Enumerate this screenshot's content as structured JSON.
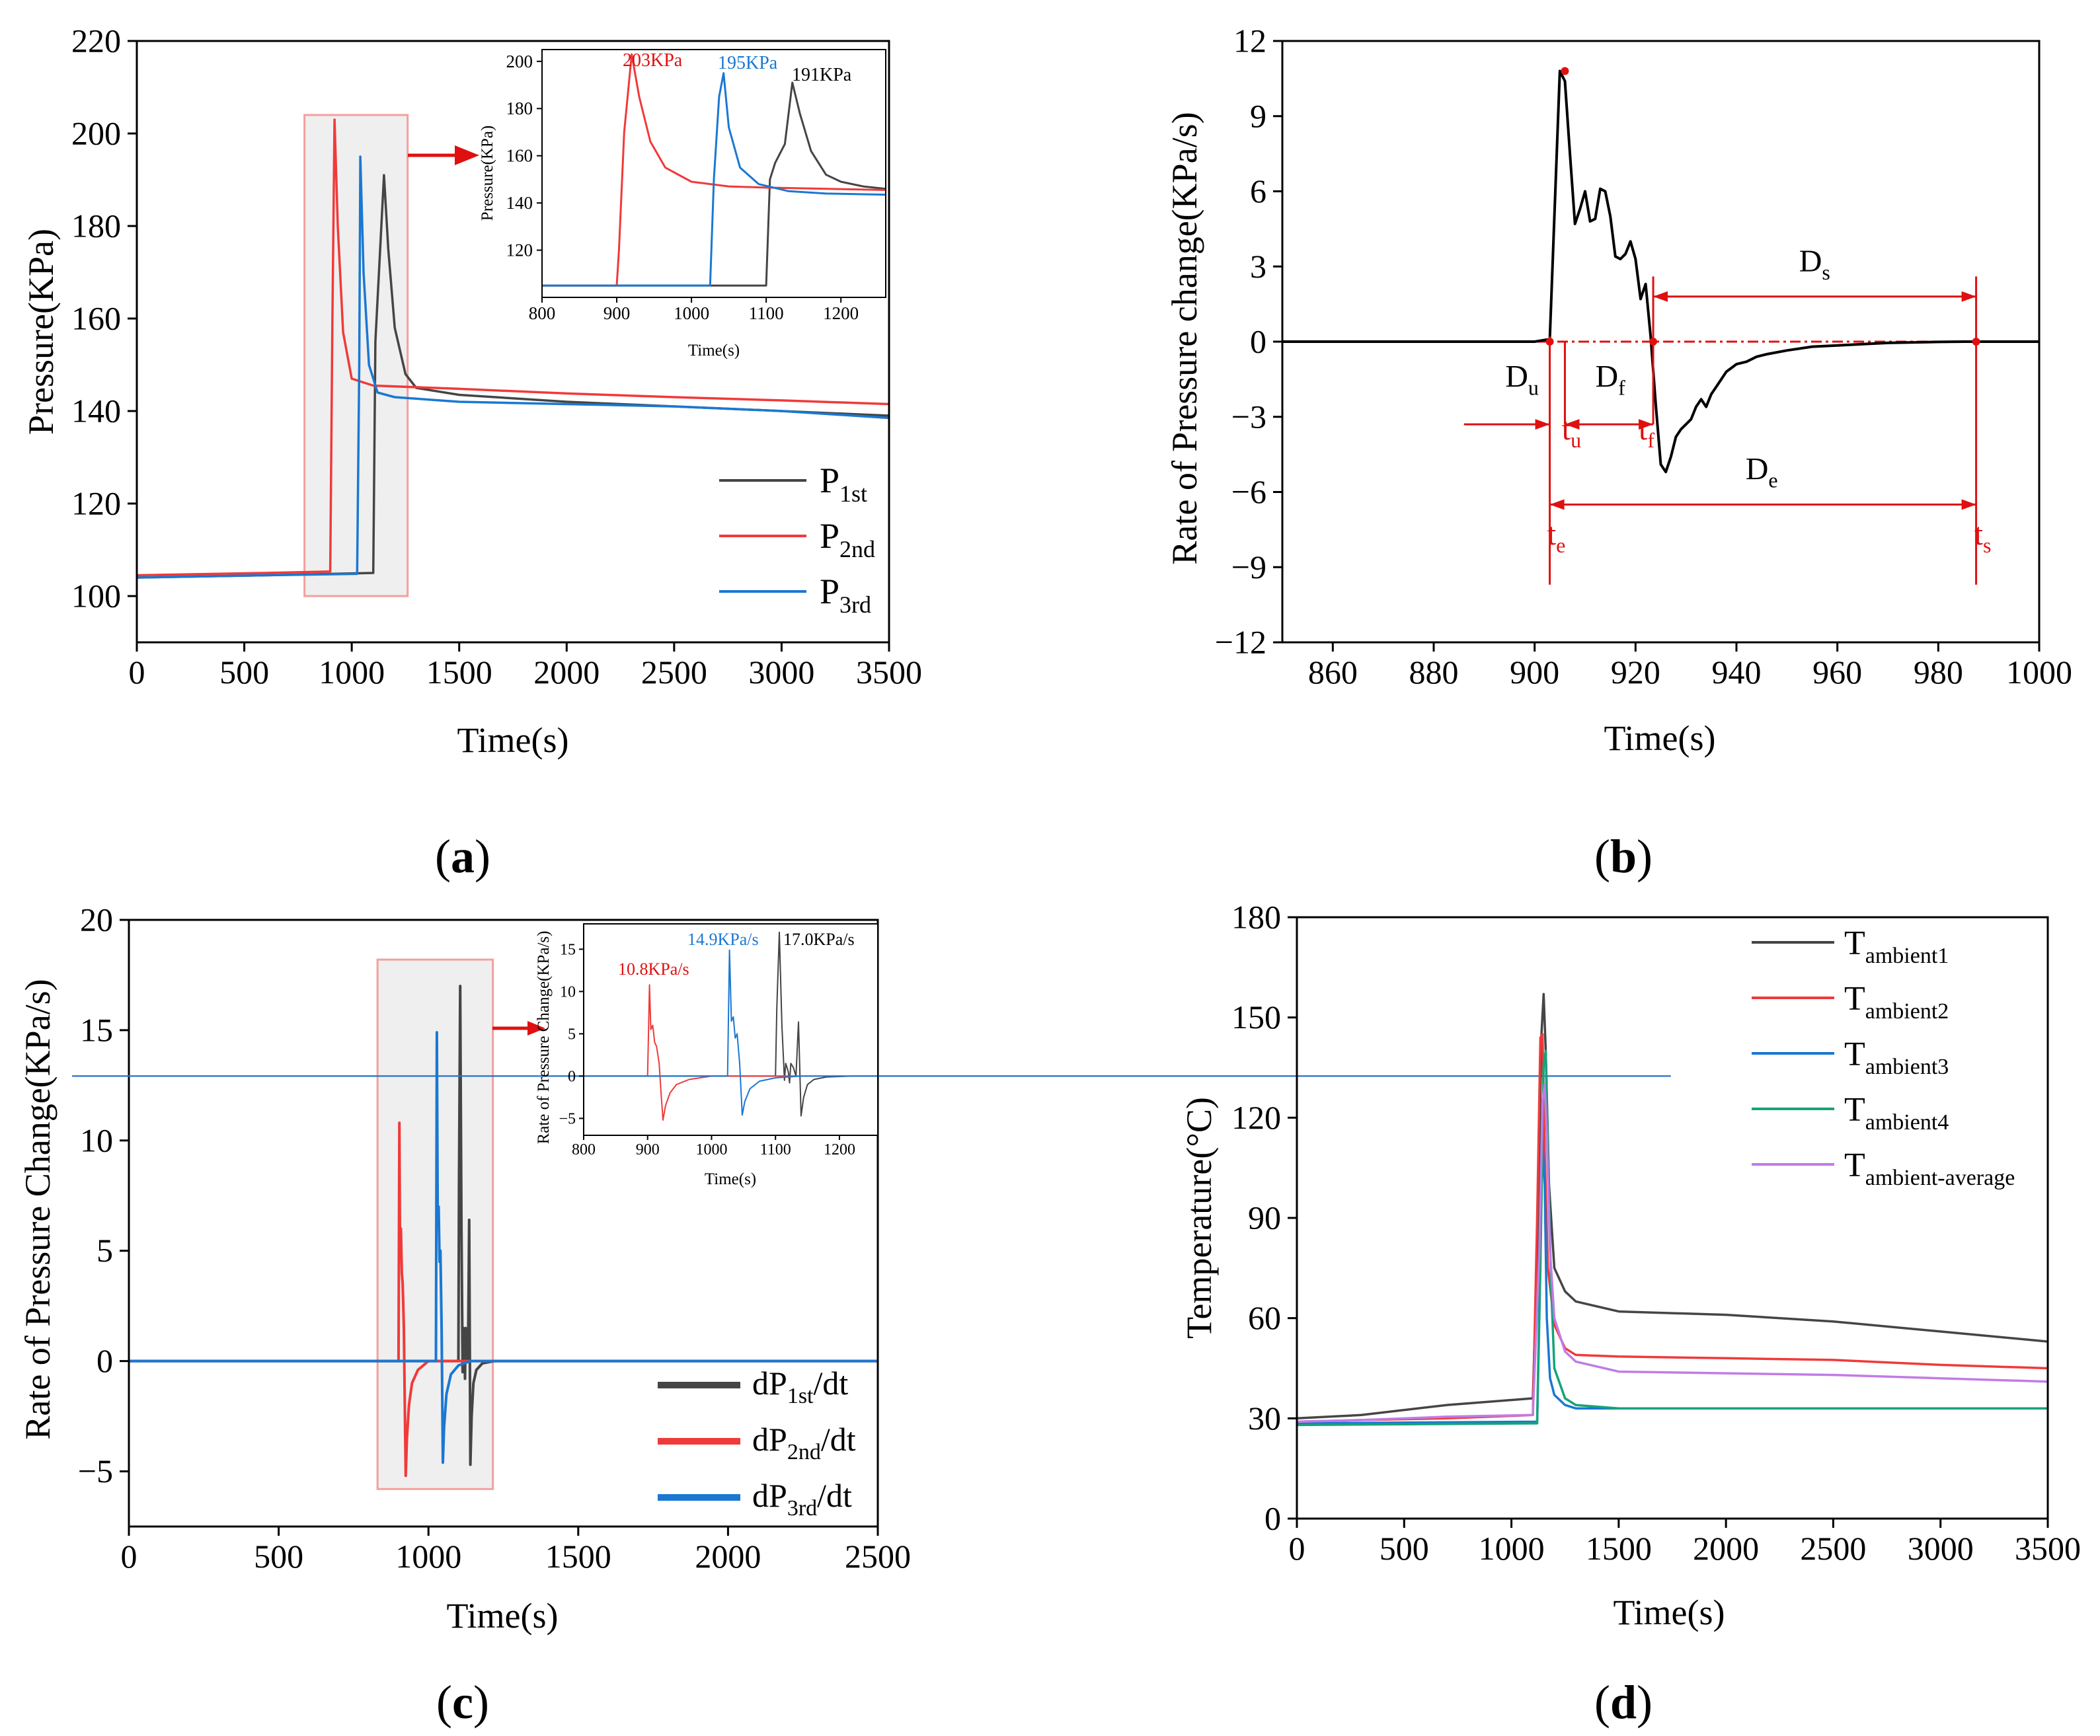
{
  "colors": {
    "p1": "#454545",
    "p2": "#f03a3a",
    "p3": "#1a78d2",
    "t4": "#15a37a",
    "tavg": "#c07ce6",
    "red": "#e01010",
    "box_fill": "#efefef",
    "box_stroke": "#f3a09e"
  },
  "chart_data": [
    {
      "panel": "(a)",
      "type": "line",
      "xlabel": "Time(s)",
      "ylabel": "Pressure(KPa)",
      "xlim": [
        0,
        3500
      ],
      "ylim": [
        90,
        220
      ],
      "xticks": [
        0,
        500,
        1000,
        1500,
        2000,
        2500,
        3000,
        3500
      ],
      "yticks": [
        100,
        120,
        140,
        160,
        180,
        200,
        220
      ],
      "legend": [
        "P",
        "1st",
        "P",
        "2nd",
        "P",
        "3rd"
      ],
      "series": [
        {
          "name": "P1st",
          "x": [
            0,
            600,
            1100,
            1110,
            1150,
            1170,
            1200,
            1250,
            1300,
            1500,
            2000,
            2500,
            3000,
            3500
          ],
          "y": [
            104,
            104.5,
            105,
            155,
            191,
            175,
            158,
            148,
            145,
            143.5,
            142,
            141,
            140,
            139
          ]
        },
        {
          "name": "P2nd",
          "x": [
            0,
            600,
            900,
            910,
            920,
            935,
            960,
            1000,
            1100,
            1500,
            2000,
            2500,
            3000,
            3500
          ],
          "y": [
            104.5,
            105,
            105.3,
            160,
            203,
            180,
            157,
            147,
            145.5,
            144.8,
            143.8,
            143,
            142.3,
            141.5
          ]
        },
        {
          "name": "P3rd",
          "x": [
            0,
            600,
            1025,
            1035,
            1040,
            1055,
            1080,
            1120,
            1200,
            1500,
            2000,
            2500,
            3000,
            3500
          ],
          "y": [
            104,
            104.5,
            104.8,
            150,
            195,
            170,
            150,
            144,
            143,
            142,
            141.5,
            141,
            140,
            138.5
          ]
        }
      ],
      "highlight_box": {
        "x": [
          780,
          1260
        ],
        "y": [
          100,
          204
        ]
      },
      "inset": {
        "xlabel": "Time(s)",
        "ylabel": "Pressure(KPa)",
        "xlim": [
          800,
          1260
        ],
        "ylim": [
          100,
          205
        ],
        "xticks": [
          800,
          900,
          1000,
          1100,
          1200
        ],
        "yticks": [
          120,
          140,
          160,
          180,
          200
        ],
        "annotations": [
          "203KPa",
          "195KPa",
          "191KPa"
        ],
        "series": [
          {
            "name": "P1st",
            "x": [
              800,
              1100,
              1105,
              1112,
              1125,
              1135,
              1145,
              1160,
              1180,
              1200,
              1230,
              1260
            ],
            "y": [
              105,
              105,
              150,
              157,
              165,
              191,
              178,
              162,
              152,
              149,
              147,
              146
            ]
          },
          {
            "name": "P2nd",
            "x": [
              800,
              900,
              903,
              910,
              920,
              930,
              945,
              965,
              1000,
              1050,
              1100,
              1260
            ],
            "y": [
              105,
              105,
              120,
              170,
              203,
              185,
              166,
              155,
              149,
              147,
              146.5,
              145.5
            ]
          },
          {
            "name": "P3rd",
            "x": [
              800,
              1025,
              1030,
              1037,
              1043,
              1050,
              1065,
              1090,
              1130,
              1180,
              1260
            ],
            "y": [
              105,
              105,
              150,
              185,
              195,
              172,
              155,
              148,
              145,
              144,
              143.5
            ]
          }
        ]
      }
    },
    {
      "panel": "(b)",
      "type": "line",
      "xlabel": "Time(s)",
      "ylabel": "Rate of Pressure change(KPa/s)",
      "xlim": [
        850,
        1000
      ],
      "ylim": [
        -12,
        12
      ],
      "xticks": [
        860,
        880,
        900,
        920,
        940,
        960,
        980,
        1000
      ],
      "yticks": [
        -12,
        -9,
        -6,
        -3,
        0,
        3,
        6,
        9,
        12
      ],
      "series": [
        {
          "name": "dP/dt",
          "x": [
            850,
            900,
            903,
            905,
            906,
            907,
            908,
            909,
            910,
            911,
            912,
            913,
            914,
            915,
            916,
            917,
            918,
            919,
            920,
            921,
            922,
            923,
            924,
            925,
            926,
            927,
            928,
            929,
            930,
            931,
            932,
            933,
            934,
            935,
            936,
            938,
            940,
            942,
            944,
            946,
            950,
            955,
            960,
            965,
            970,
            975,
            980,
            985,
            990,
            1000
          ],
          "y": [
            0,
            0,
            0.1,
            10.8,
            10.4,
            7.5,
            4.7,
            5.3,
            6.0,
            4.8,
            4.9,
            6.1,
            6.0,
            5.0,
            3.4,
            3.3,
            3.5,
            4.0,
            3.3,
            1.7,
            2.3,
            0.2,
            -2.5,
            -4.9,
            -5.2,
            -4.6,
            -3.8,
            -3.5,
            -3.3,
            -3.1,
            -2.6,
            -2.3,
            -2.6,
            -2.1,
            -1.8,
            -1.2,
            -0.9,
            -0.8,
            -0.6,
            -0.5,
            -0.35,
            -0.2,
            -0.15,
            -0.1,
            -0.05,
            -0.03,
            -0.01,
            0,
            0,
            0
          ]
        }
      ],
      "markers": [
        {
          "label_main": "t",
          "label_sub": "e",
          "x": 903
        },
        {
          "label_main": "t",
          "label_sub": "u",
          "x": 906
        },
        {
          "label_main": "t",
          "label_sub": "f",
          "x": 923.5
        },
        {
          "label_main": "t",
          "label_sub": "s",
          "x": 987.5
        }
      ],
      "spans": [
        {
          "label_main": "D",
          "label_sub": "u"
        },
        {
          "label_main": "D",
          "label_sub": "f"
        },
        {
          "label_main": "D",
          "label_sub": "s"
        },
        {
          "label_main": "D",
          "label_sub": "e"
        }
      ]
    },
    {
      "panel": "(c)",
      "type": "line",
      "xlabel": "Time(s)",
      "ylabel": "Rate of Pressure Change(KPa/s)",
      "xlim": [
        0,
        2500
      ],
      "ylim": [
        -7.5,
        20
      ],
      "xticks": [
        0,
        500,
        1000,
        1500,
        2000,
        2500
      ],
      "yticks": [
        -5,
        0,
        5,
        10,
        15,
        20
      ],
      "legend": [
        "dP",
        "1st",
        "/dt",
        "dP",
        "2nd",
        "/dt",
        "dP",
        "3rd",
        "/dt"
      ],
      "series": [
        {
          "name": "dP1st/dt",
          "x": [
            0,
            1100,
            1102,
            1106,
            1110,
            1114,
            1116,
            1120,
            1122,
            1124,
            1128,
            1132,
            1136,
            1140,
            1144,
            1150,
            1160,
            1180,
            1220,
            2500
          ],
          "y": [
            0,
            0,
            8,
            17.0,
            6,
            -0.5,
            1.5,
            0.5,
            -0.8,
            1.5,
            1.0,
            0,
            6.4,
            -4.7,
            -2.5,
            -1.0,
            -0.4,
            -0.1,
            0,
            0
          ]
        },
        {
          "name": "dP2nd/dt",
          "x": [
            0,
            900,
            903,
            905,
            908,
            911,
            914,
            918,
            921,
            924,
            928,
            935,
            945,
            965,
            1000,
            2500
          ],
          "y": [
            0,
            0,
            10.8,
            5.5,
            6.0,
            4.0,
            3.5,
            1.5,
            -2.0,
            -5.2,
            -3.5,
            -2.0,
            -1.0,
            -0.4,
            0,
            0
          ]
        },
        {
          "name": "dP3rd/dt",
          "x": [
            0,
            1025,
            1028,
            1031,
            1034,
            1037,
            1040,
            1044,
            1048,
            1052,
            1060,
            1075,
            1100,
            1140,
            2500
          ],
          "y": [
            0,
            0,
            14.9,
            6.5,
            7.0,
            4.5,
            5.0,
            1.5,
            -4.6,
            -3.0,
            -1.5,
            -0.6,
            -0.2,
            0,
            0
          ]
        }
      ],
      "highlight_box": {
        "x": [
          830,
          1215
        ],
        "y": [
          -5.8,
          18.2
        ]
      },
      "inset": {
        "xlabel": "Time(s)",
        "ylabel": "Rate of Pressure Change(KPa/s)",
        "xlim": [
          800,
          1260
        ],
        "ylim": [
          -7,
          18
        ],
        "xticks": [
          800,
          900,
          1000,
          1100,
          1200
        ],
        "yticks": [
          -5,
          0,
          5,
          10,
          15
        ],
        "annotations": [
          "10.8KPa/s",
          "14.9KPa/s",
          "17.0KPa/s"
        ]
      }
    },
    {
      "panel": "(d)",
      "type": "line",
      "xlabel": "Time(s)",
      "ylabel": "Temperature(°C)",
      "xlim": [
        0,
        3500
      ],
      "ylim": [
        0,
        180
      ],
      "xticks": [
        0,
        500,
        1000,
        1500,
        2000,
        2500,
        3000,
        3500
      ],
      "yticks": [
        0,
        30,
        60,
        90,
        120,
        150,
        180
      ],
      "legend": [
        "T",
        "ambient1",
        "T",
        "ambient2",
        "T",
        "ambient3",
        "T",
        "ambient4",
        "T",
        "ambient-average"
      ],
      "series": [
        {
          "name": "Tambient1",
          "x": [
            0,
            300,
            700,
            1100,
            1125,
            1140,
            1150,
            1160,
            1175,
            1200,
            1250,
            1300,
            1500,
            2000,
            2500,
            3000,
            3500
          ],
          "y": [
            30,
            31,
            34,
            36,
            90,
            145,
            157,
            140,
            100,
            75,
            68,
            65,
            62,
            61,
            59,
            56,
            53
          ]
        },
        {
          "name": "Tambient2",
          "x": [
            0,
            300,
            700,
            1100,
            1120,
            1135,
            1145,
            1155,
            1170,
            1200,
            1250,
            1300,
            1500,
            2000,
            2500,
            3000,
            3500
          ],
          "y": [
            29,
            29.5,
            30,
            31,
            90,
            144,
            145,
            110,
            75,
            58,
            51,
            49,
            48.5,
            48,
            47.5,
            46,
            45
          ]
        },
        {
          "name": "Tambient3",
          "x": [
            0,
            1120,
            1135,
            1145,
            1155,
            1165,
            1180,
            1200,
            1250,
            1300,
            1500,
            2500,
            3500
          ],
          "y": [
            28.5,
            29,
            80,
            113,
            100,
            60,
            42,
            37,
            34,
            33,
            33,
            33,
            33
          ]
        },
        {
          "name": "Tambient4",
          "x": [
            0,
            1120,
            1135,
            1150,
            1160,
            1170,
            1185,
            1200,
            1250,
            1300,
            1500,
            2500,
            3500
          ],
          "y": [
            28,
            28.5,
            75,
            136,
            140,
            110,
            70,
            45,
            36,
            34,
            33,
            33,
            33
          ]
        },
        {
          "name": "Tambient-average",
          "x": [
            0,
            300,
            700,
            1100,
            1130,
            1145,
            1155,
            1165,
            1180,
            1200,
            1250,
            1300,
            1500,
            2000,
            2500,
            3000,
            3500
          ],
          "y": [
            29,
            29.5,
            30.5,
            31,
            80,
            125,
            130,
            115,
            80,
            60,
            50,
            47,
            44,
            43.5,
            43,
            42,
            41
          ]
        }
      ]
    }
  ]
}
